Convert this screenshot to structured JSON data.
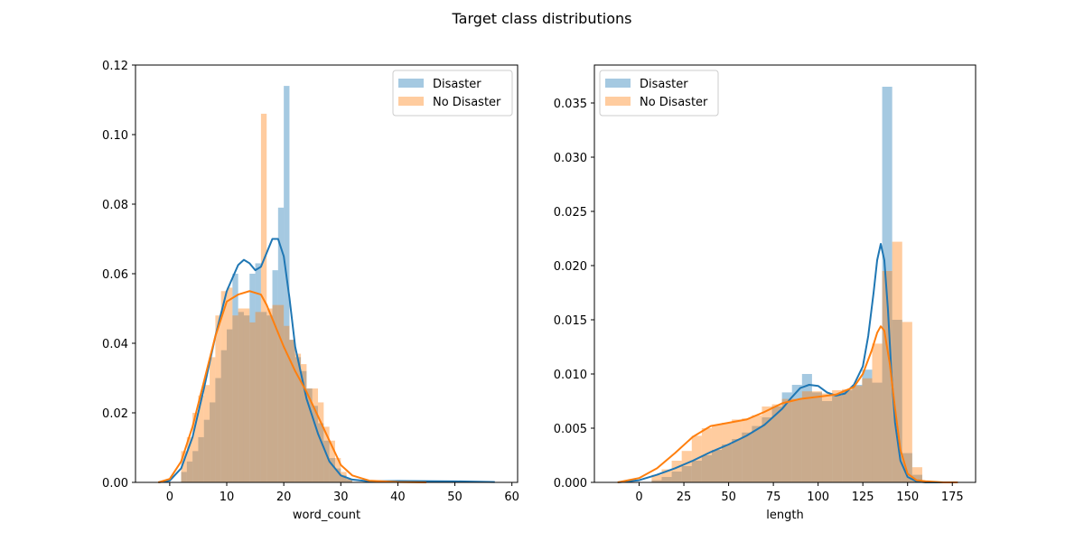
{
  "figure": {
    "title": "Target class distributions"
  },
  "chart_data": [
    {
      "type": "histogram",
      "xlabel": "word_count",
      "ylabel": "",
      "xlim": [
        -6,
        61
      ],
      "ylim": [
        0,
        0.12
      ],
      "xticks": [
        0,
        10,
        20,
        30,
        40,
        50,
        60
      ],
      "yticks": [
        0.0,
        0.02,
        0.04,
        0.06,
        0.08,
        0.1,
        0.12
      ],
      "ytick_labels": [
        "0.00",
        "0.02",
        "0.04",
        "0.06",
        "0.08",
        "0.10",
        "0.12"
      ],
      "legend_position": "upper right",
      "bin_width": 1,
      "series": [
        {
          "name": "Disaster",
          "color": "#1f77b4",
          "bins_start": 2,
          "density": [
            0.003,
            0.006,
            0.009,
            0.013,
            0.018,
            0.023,
            0.03,
            0.038,
            0.044,
            0.06,
            0.049,
            0.048,
            0.06,
            0.063,
            0.049,
            0.048,
            0.061,
            0.079,
            0.114,
            0.041,
            0.036,
            0.032,
            0.027,
            0.022,
            0.017,
            0.012,
            0.007,
            0.004,
            0.002,
            0.001
          ],
          "kde_x": [
            -2,
            0,
            2,
            4,
            6,
            8,
            10,
            12,
            13,
            14,
            15,
            16,
            17,
            18,
            19,
            20,
            21,
            22,
            24,
            26,
            28,
            30,
            32,
            35,
            40,
            50,
            57
          ],
          "kde_y": [
            0,
            0.0005,
            0.004,
            0.013,
            0.027,
            0.042,
            0.055,
            0.0625,
            0.064,
            0.063,
            0.061,
            0.062,
            0.066,
            0.07,
            0.07,
            0.065,
            0.053,
            0.039,
            0.024,
            0.014,
            0.006,
            0.002,
            0.0008,
            0.0003,
            0.0004,
            0.0003,
            0.0001
          ]
        },
        {
          "name": "No Disaster",
          "color": "#ff7f0e",
          "bins_start": 2,
          "density": [
            0.009,
            0.013,
            0.02,
            0.025,
            0.028,
            0.036,
            0.048,
            0.055,
            0.056,
            0.048,
            0.05,
            0.05,
            0.046,
            0.049,
            0.106,
            0.05,
            0.051,
            0.051,
            0.045,
            0.041,
            0.037,
            0.034,
            0.027,
            0.027,
            0.023,
            0.016,
            0.012,
            0.007,
            0.003,
            0.001
          ],
          "kde_x": [
            -2,
            0,
            2,
            4,
            6,
            8,
            10,
            12,
            14,
            16,
            17,
            18,
            20,
            22,
            24,
            26,
            28,
            30,
            32,
            35,
            40,
            45
          ],
          "kde_y": [
            0,
            0.001,
            0.006,
            0.016,
            0.029,
            0.042,
            0.052,
            0.054,
            0.055,
            0.054,
            0.051,
            0.047,
            0.039,
            0.032,
            0.026,
            0.019,
            0.012,
            0.005,
            0.002,
            0.0005,
            0.0001,
            0
          ]
        }
      ]
    },
    {
      "type": "histogram",
      "xlabel": "length",
      "ylabel": "",
      "xlim": [
        -25,
        188
      ],
      "ylim": [
        0,
        0.0385
      ],
      "xticks": [
        0,
        25,
        50,
        75,
        100,
        125,
        150,
        175
      ],
      "yticks": [
        0.0,
        0.005,
        0.01,
        0.015,
        0.02,
        0.025,
        0.03,
        0.035
      ],
      "ytick_labels": [
        "0.000",
        "0.005",
        "0.010",
        "0.015",
        "0.020",
        "0.025",
        "0.030",
        "0.035"
      ],
      "legend_position": "upper left",
      "bin_width": 5.6,
      "series": [
        {
          "name": "Disaster",
          "color": "#1f77b4",
          "bins_start": 7,
          "density": [
            0.0002,
            0.0005,
            0.001,
            0.0015,
            0.002,
            0.0025,
            0.003,
            0.0035,
            0.004,
            0.0046,
            0.0052,
            0.006,
            0.007,
            0.0083,
            0.009,
            0.01,
            0.0083,
            0.0075,
            0.008,
            0.0085,
            0.009,
            0.0104,
            0.0092,
            0.0365,
            0.015,
            0.0027,
            0.0007
          ],
          "kde_x": [
            -12,
            0,
            10,
            20,
            30,
            40,
            50,
            60,
            70,
            80,
            85,
            90,
            95,
            100,
            105,
            110,
            115,
            120,
            125,
            128,
            131,
            133,
            135,
            137,
            139,
            141,
            143,
            146,
            150,
            155,
            160,
            170,
            178
          ],
          "kde_y": [
            0,
            0.0002,
            0.0007,
            0.0013,
            0.002,
            0.0028,
            0.0035,
            0.0043,
            0.0053,
            0.0068,
            0.0078,
            0.0087,
            0.009,
            0.0089,
            0.0083,
            0.008,
            0.0082,
            0.009,
            0.0107,
            0.0135,
            0.0175,
            0.0205,
            0.022,
            0.0205,
            0.016,
            0.01,
            0.0055,
            0.002,
            0.0005,
            0.0001,
            0,
            0,
            0
          ]
        },
        {
          "name": "No Disaster",
          "color": "#ff7f0e",
          "bins_start": 7,
          "density": [
            0.0007,
            0.0012,
            0.002,
            0.0029,
            0.0043,
            0.005,
            0.0053,
            0.0055,
            0.0058,
            0.0059,
            0.0062,
            0.007,
            0.0072,
            0.0077,
            0.0077,
            0.0084,
            0.0084,
            0.0082,
            0.0085,
            0.0086,
            0.0089,
            0.0096,
            0.0128,
            0.0195,
            0.0222,
            0.0148,
            0.0014
          ],
          "kde_x": [
            -12,
            0,
            10,
            20,
            30,
            40,
            50,
            60,
            70,
            80,
            90,
            100,
            110,
            120,
            125,
            130,
            133,
            135,
            137,
            140,
            143,
            146,
            150,
            155,
            160,
            170,
            178
          ],
          "kde_y": [
            0,
            0.0004,
            0.0013,
            0.0027,
            0.0042,
            0.0052,
            0.0055,
            0.0058,
            0.0065,
            0.0073,
            0.0077,
            0.0079,
            0.0081,
            0.0088,
            0.01,
            0.0122,
            0.0138,
            0.0144,
            0.014,
            0.011,
            0.0068,
            0.003,
            0.0008,
            0.0002,
            0.0001,
            0,
            0
          ]
        }
      ]
    }
  ]
}
